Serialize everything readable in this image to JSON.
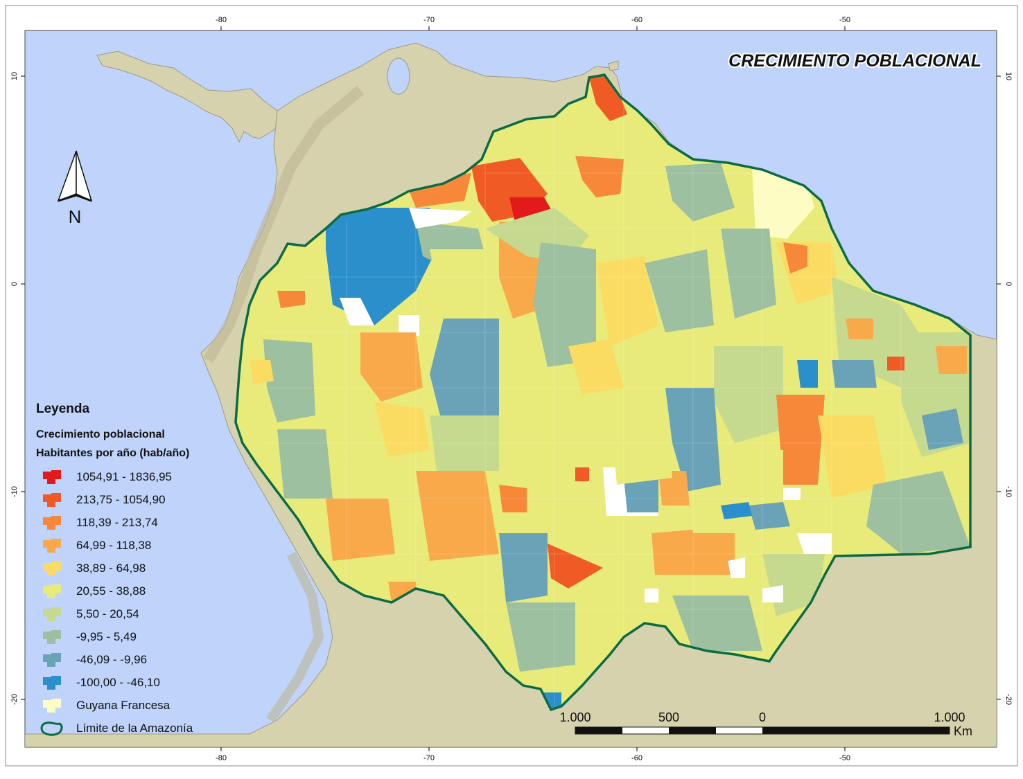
{
  "title": "CRECIMIENTO POBLACIONAL",
  "axes": {
    "x_ticks": [
      "-80",
      "-70",
      "-60",
      "-50"
    ],
    "y_ticks": [
      "10",
      "0",
      "-10",
      "-20"
    ]
  },
  "north_arrow": {
    "label": "N",
    "icon": "north-arrow-icon"
  },
  "legend": {
    "title": "Leyenda",
    "subtitle1": "Crecimiento poblacional",
    "subtitle2": "Habitantes por año (hab/año)",
    "classes": [
      {
        "label": "1054,91 - 1836,95",
        "color": "#e31a1c"
      },
      {
        "label": "213,75 - 1054,90",
        "color": "#f05a24"
      },
      {
        "label": "118,39 - 213,74",
        "color": "#f7883a"
      },
      {
        "label": "64,99 - 118,38",
        "color": "#f9a84a"
      },
      {
        "label": "38,89 - 64,98",
        "color": "#fbdc62"
      },
      {
        "label": "20,55 - 38,88",
        "color": "#e8eb7a"
      },
      {
        "label": "5,50 - 20,54",
        "color": "#c5d98f"
      },
      {
        "label": "-9,95 - 5,49",
        "color": "#9cc0a0"
      },
      {
        "label": "-46,09 - -9,96",
        "color": "#6aa3b8"
      },
      {
        "label": "-100,00 - -46,10",
        "color": "#2b8fcc"
      },
      {
        "label": "Guyana Francesa",
        "color": "#fdfcc2"
      }
    ],
    "boundary": {
      "label": "Límite de la Amazonía",
      "color": "#0b6b43"
    }
  },
  "scale_bar": {
    "labels": [
      "1.000",
      "500",
      "0",
      "1.000"
    ],
    "unit": "Km"
  },
  "colors": {
    "ocean": "#bfd3fb",
    "land": "#d6d2ad",
    "boundary": "#0b6b43"
  }
}
